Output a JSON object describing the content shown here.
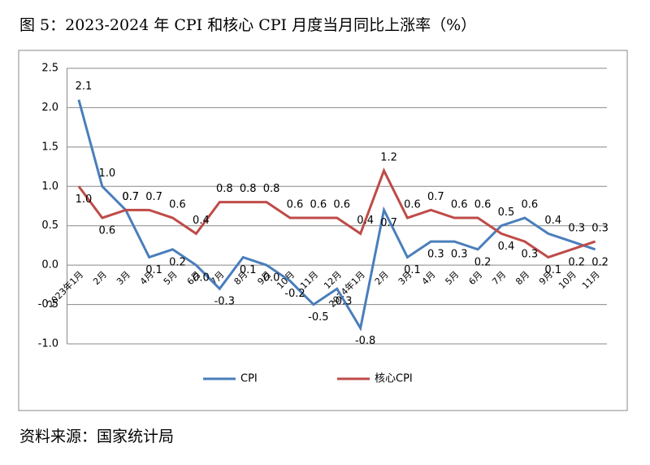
{
  "chart_data": {
    "type": "line",
    "title": "图 5：2023-2024 年 CPI 和核心 CPI 月度当月同比上涨率（%）",
    "source": "资料来源：国家统计局",
    "categories": [
      "2023年1月",
      "2月",
      "3月",
      "4月",
      "5月",
      "6月",
      "7月",
      "8月",
      "9月",
      "10月",
      "11月",
      "12月",
      "2024年1月",
      "2月",
      "3月",
      "4月",
      "5月",
      "6月",
      "7月",
      "8月",
      "9月",
      "10月",
      "11月"
    ],
    "series": [
      {
        "name": "CPI",
        "color": "#4a7ebb",
        "values": [
          2.1,
          1.0,
          0.7,
          0.1,
          0.2,
          0.0,
          -0.3,
          0.1,
          0.0,
          -0.2,
          -0.5,
          -0.3,
          -0.8,
          0.7,
          0.1,
          0.3,
          0.3,
          0.2,
          0.5,
          0.6,
          0.4,
          0.3,
          0.2
        ],
        "value_labels": [
          "2.1",
          "1.0",
          "0.7",
          "0.1",
          "0.2",
          "0.0",
          "-0.3",
          "0.1",
          "0.0",
          "-0.2",
          "-0.5",
          "-0.3",
          "-0.8",
          "0.7",
          "0.1",
          "0.3",
          "0.3",
          "0.2",
          "0.5",
          "0.6",
          "0.4",
          "0.3",
          "0.2"
        ]
      },
      {
        "name": "核心CPI",
        "color": "#be4b48",
        "values": [
          1.0,
          0.6,
          0.7,
          0.7,
          0.6,
          0.4,
          0.8,
          0.8,
          0.8,
          0.6,
          0.6,
          0.6,
          0.4,
          1.2,
          0.6,
          0.7,
          0.6,
          0.6,
          0.4,
          0.3,
          0.1,
          0.2,
          0.3
        ],
        "value_labels": [
          "1.0",
          "0.6",
          "0.7",
          "0.7",
          "0.6",
          "0.4",
          "0.8",
          "0.8",
          "0.8",
          "0.6",
          "0.6",
          "0.6",
          "0.4",
          "1.2",
          "0.6",
          "0.7",
          "0.6",
          "0.6",
          "0.4",
          "0.3",
          "0.1",
          "0.2",
          "0.3"
        ]
      }
    ],
    "ylim": [
      -1.0,
      2.5
    ],
    "yticks": [
      {
        "value": -1.0,
        "label": "-1.0"
      },
      -0.5,
      {
        "value": 0,
        "label": "0.0"
      },
      0.5,
      {
        "value": 1.0,
        "label": "1.0"
      },
      1.5,
      {
        "value": 2.0,
        "label": "2.0"
      },
      2.5
    ],
    "grid": true,
    "legend": "bottom"
  }
}
